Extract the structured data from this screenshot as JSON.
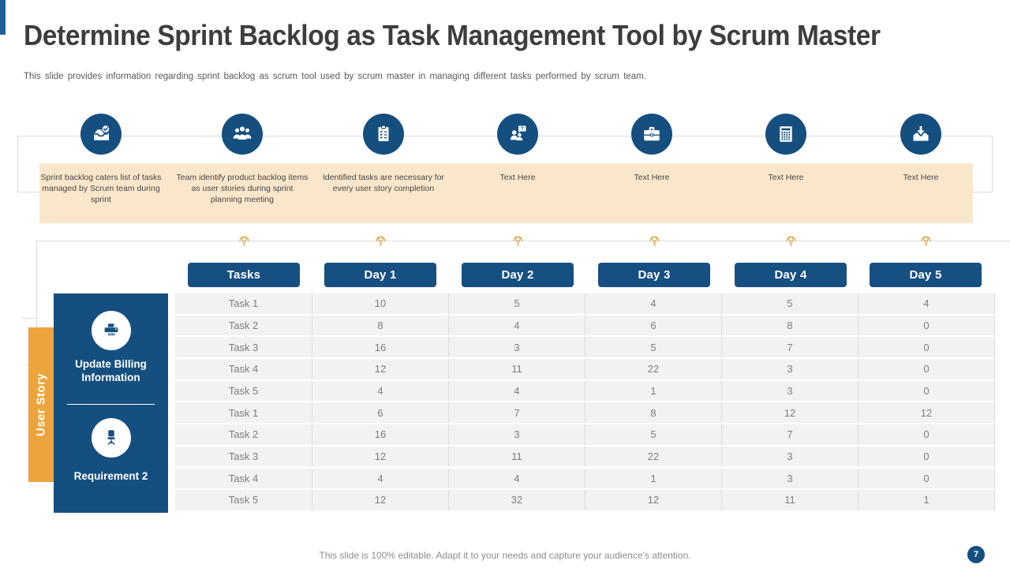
{
  "slide": {
    "title": "Determine Sprint Backlog as Task Management Tool by Scrum Master",
    "subtitle": "This slide provides information regarding sprint backlog as scrum tool used by scrum master in managing different tasks performed by scrum team.",
    "footer_note": "This slide is 100% editable. Adapt it to your needs and capture your audience's attention.",
    "page_number": "7"
  },
  "process_steps": [
    {
      "icon": "inbox-check-icon",
      "caption": "Sprint backlog caters list of tasks managed by Scrum team during sprint"
    },
    {
      "icon": "team-meeting-icon",
      "caption": "Team identify product backlog items as user stories during sprint planning meeting"
    },
    {
      "icon": "clipboard-checklist-icon",
      "caption": "Identified tasks are necessary for every user story completion"
    },
    {
      "icon": "person-question-icon",
      "caption": "Text Here"
    },
    {
      "icon": "briefcase-icon",
      "caption": "Text Here"
    },
    {
      "icon": "calculator-icon",
      "caption": "Text Here"
    },
    {
      "icon": "inbox-download-icon",
      "caption": "Text Here"
    }
  ],
  "sidebar": {
    "tab_label": "User Story",
    "items": [
      {
        "icon": "printer-icon",
        "label": "Update Billing Information"
      },
      {
        "icon": "office-chair-icon",
        "label": "Requirement 2"
      }
    ]
  },
  "table": {
    "headers": [
      "Tasks",
      "Day 1",
      "Day 2",
      "Day 3",
      "Day 4",
      "Day 5"
    ],
    "rows": [
      [
        "Task 1",
        10,
        5,
        4,
        5,
        4
      ],
      [
        "Task 2",
        8,
        4,
        6,
        8,
        0
      ],
      [
        "Task 3",
        16,
        3,
        5,
        7,
        0
      ],
      [
        "Task 4",
        12,
        11,
        22,
        3,
        0
      ],
      [
        "Task 5",
        4,
        4,
        1,
        3,
        0
      ],
      [
        "Task 1",
        6,
        7,
        8,
        12,
        12
      ],
      [
        "Task 2",
        16,
        3,
        5,
        7,
        0
      ],
      [
        "Task 3",
        12,
        11,
        22,
        3,
        0
      ],
      [
        "Task 4",
        4,
        4,
        1,
        3,
        0
      ],
      [
        "Task 5",
        12,
        32,
        12,
        11,
        1
      ]
    ]
  },
  "colors": {
    "deep_blue": "#154F80",
    "top_bar_blue": "#1F5C99",
    "orange": "#ECA43D",
    "peach_band": "#FAE7CB",
    "bulb_gold": "#D6A03C",
    "row_gray": "#F2F2F2"
  }
}
